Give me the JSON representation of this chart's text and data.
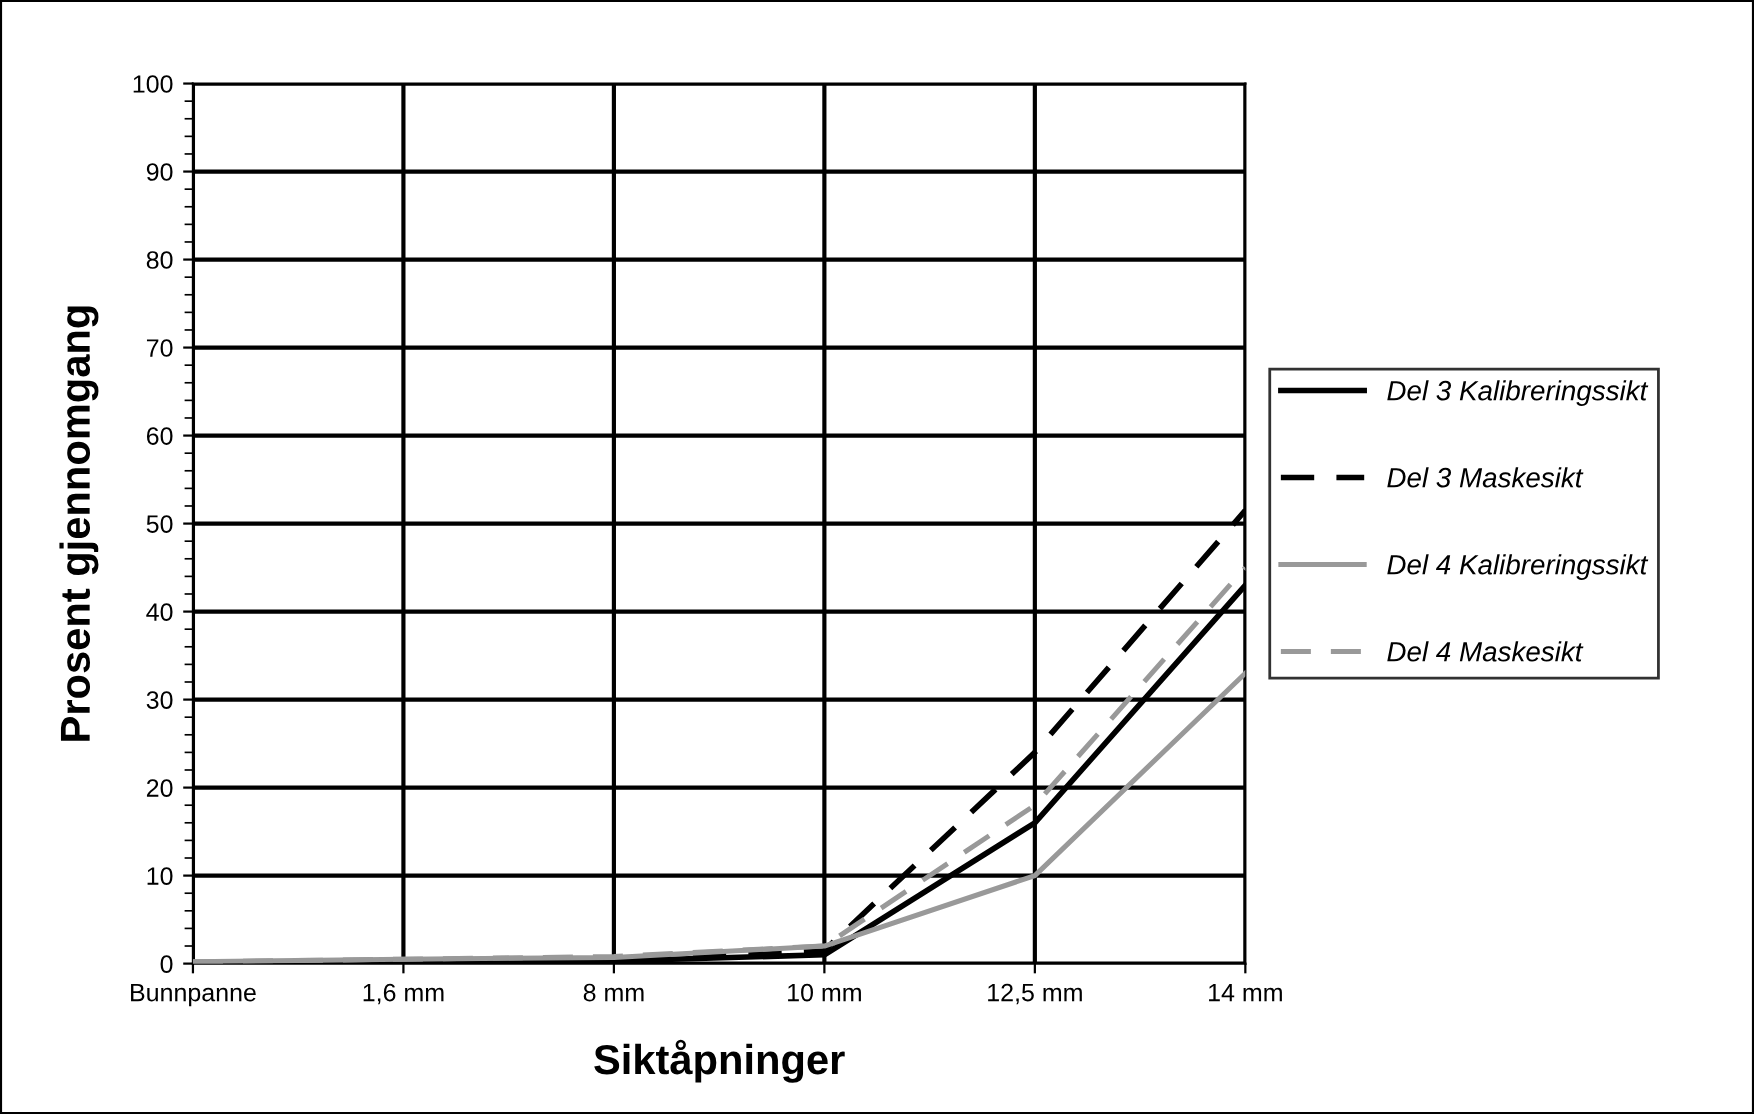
{
  "chart_data": {
    "type": "line",
    "xlabel": "Siktåpninger",
    "ylabel": "Prosent gjennomgang",
    "categories": [
      "Bunnpanne",
      "1,6 mm",
      "8 mm",
      "10 mm",
      "12,5 mm",
      "14 mm"
    ],
    "series": [
      {
        "name": "Del 3 Kalibreringssikt",
        "color": "#000000",
        "line_style": "solid",
        "values": [
          0,
          0.2,
          0.3,
          1,
          16,
          43
        ]
      },
      {
        "name": "Del 3 Maskesikt",
        "color": "#000000",
        "line_style": "dashed",
        "values": [
          0,
          0.3,
          0.5,
          1.5,
          24,
          51.5
        ]
      },
      {
        "name": "Del 4 Kalibreringssikt",
        "color": "#999999",
        "line_style": "solid",
        "values": [
          0.2,
          0.5,
          0.7,
          2,
          10,
          33
        ]
      },
      {
        "name": "Del 4 Maskesikt",
        "color": "#999999",
        "line_style": "dashed",
        "values": [
          0.2,
          0.5,
          0.8,
          2,
          18,
          45
        ]
      }
    ],
    "ylim": [
      0,
      100
    ],
    "yticks": [
      0,
      10,
      20,
      30,
      40,
      50,
      60,
      70,
      80,
      90,
      100
    ],
    "grid": true,
    "legend": "right",
    "marker": "none"
  }
}
